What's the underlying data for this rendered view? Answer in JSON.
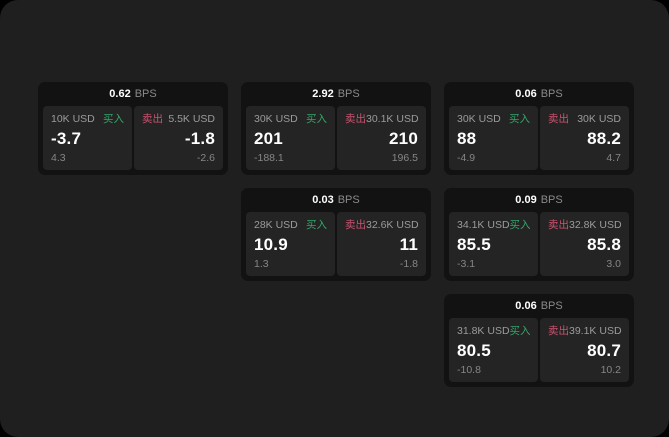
{
  "labels": {
    "bps_suffix": "BPS",
    "buy": "买入",
    "sell": "卖出"
  },
  "colors": {
    "background": "#1f1f1f",
    "card": "#121212",
    "panel": "#242424",
    "buy_green": "#35a568",
    "sell_red": "#cc5270"
  },
  "cards": [
    {
      "bps": "0.62",
      "buy": {
        "amount": "10K USD",
        "price": "-3.7",
        "change": "4.3"
      },
      "sell": {
        "amount": "5.5K USD",
        "price": "-1.8",
        "change": "-2.6"
      }
    },
    {
      "bps": "2.92",
      "buy": {
        "amount": "30K USD",
        "price": "201",
        "change": "-188.1"
      },
      "sell": {
        "amount": "30.1K USD",
        "price": "210",
        "change": "196.5"
      }
    },
    {
      "bps": "0.06",
      "buy": {
        "amount": "30K USD",
        "price": "88",
        "change": "-4.9"
      },
      "sell": {
        "amount": "30K USD",
        "price": "88.2",
        "change": "4.7"
      }
    },
    {
      "bps": "0.03",
      "buy": {
        "amount": "28K USD",
        "price": "10.9",
        "change": "1.3"
      },
      "sell": {
        "amount": "32.6K USD",
        "price": "11",
        "change": "-1.8"
      }
    },
    {
      "bps": "0.09",
      "buy": {
        "amount": "34.1K USD",
        "price": "85.5",
        "change": "-3.1"
      },
      "sell": {
        "amount": "32.8K USD",
        "price": "85.8",
        "change": "3.0"
      }
    },
    {
      "bps": "0.06",
      "buy": {
        "amount": "31.8K USD",
        "price": "80.5",
        "change": "-10.8"
      },
      "sell": {
        "amount": "39.1K USD",
        "price": "80.7",
        "change": "10.2"
      }
    }
  ]
}
